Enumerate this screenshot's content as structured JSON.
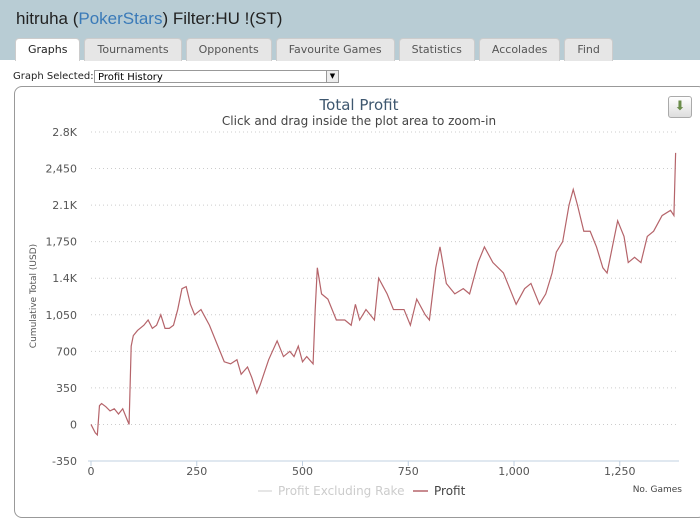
{
  "header": {
    "user": "hitruha",
    "site": "PokerStars",
    "filter": "Filter:HU !(ST)"
  },
  "tabs": [
    {
      "label": "Graphs",
      "active": true
    },
    {
      "label": "Tournaments"
    },
    {
      "label": "Opponents"
    },
    {
      "label": "Favourite Games"
    },
    {
      "label": "Statistics"
    },
    {
      "label": "Accolades"
    },
    {
      "label": "Find"
    }
  ],
  "graph_select": {
    "label": "Graph Selected:",
    "value": "Profit History"
  },
  "chart_data": {
    "type": "line",
    "title": "Total Profit",
    "subtitle": "Click and drag inside the plot area to zoom-in",
    "xlabel": "No. Games",
    "ylabel": "Cumulative Total (USD)",
    "xlim": [
      0,
      1390
    ],
    "ylim": [
      -350,
      2800
    ],
    "xticks": [
      0,
      250,
      500,
      750,
      1000,
      1250
    ],
    "xtick_labels": [
      "0",
      "250",
      "500",
      "750",
      "1,000",
      "1,250"
    ],
    "yticks": [
      -350,
      0,
      350,
      700,
      1050,
      1400,
      1750,
      2100,
      2450,
      2800
    ],
    "ytick_labels": [
      "-350",
      "0",
      "350",
      "700",
      "1,050",
      "1.4K",
      "1,750",
      "2.1K",
      "2,450",
      "2.8K"
    ],
    "grid": true,
    "legend": "bottom",
    "series": [
      {
        "name": "Profit Excluding Rake",
        "color": "#cccccc",
        "visible": false,
        "points": []
      },
      {
        "name": "Profit",
        "color": "#b5646a",
        "points": [
          [
            0,
            0
          ],
          [
            10,
            -80
          ],
          [
            15,
            -100
          ],
          [
            20,
            180
          ],
          [
            25,
            200
          ],
          [
            35,
            170
          ],
          [
            45,
            130
          ],
          [
            55,
            150
          ],
          [
            65,
            100
          ],
          [
            75,
            150
          ],
          [
            85,
            50
          ],
          [
            90,
            0
          ],
          [
            92,
            300
          ],
          [
            95,
            750
          ],
          [
            100,
            850
          ],
          [
            110,
            900
          ],
          [
            125,
            950
          ],
          [
            135,
            1000
          ],
          [
            145,
            920
          ],
          [
            155,
            950
          ],
          [
            165,
            1050
          ],
          [
            175,
            920
          ],
          [
            185,
            920
          ],
          [
            195,
            950
          ],
          [
            205,
            1100
          ],
          [
            215,
            1300
          ],
          [
            225,
            1320
          ],
          [
            235,
            1150
          ],
          [
            245,
            1050
          ],
          [
            260,
            1100
          ],
          [
            280,
            950
          ],
          [
            300,
            750
          ],
          [
            315,
            600
          ],
          [
            330,
            580
          ],
          [
            345,
            620
          ],
          [
            355,
            480
          ],
          [
            370,
            550
          ],
          [
            380,
            450
          ],
          [
            392,
            300
          ],
          [
            400,
            380
          ],
          [
            420,
            620
          ],
          [
            440,
            800
          ],
          [
            455,
            650
          ],
          [
            470,
            700
          ],
          [
            480,
            650
          ],
          [
            490,
            750
          ],
          [
            500,
            600
          ],
          [
            510,
            650
          ],
          [
            525,
            580
          ],
          [
            530,
            1100
          ],
          [
            535,
            1500
          ],
          [
            545,
            1250
          ],
          [
            560,
            1200
          ],
          [
            580,
            1000
          ],
          [
            600,
            1000
          ],
          [
            615,
            950
          ],
          [
            625,
            1150
          ],
          [
            635,
            1000
          ],
          [
            650,
            1100
          ],
          [
            670,
            1000
          ],
          [
            680,
            1400
          ],
          [
            700,
            1250
          ],
          [
            715,
            1100
          ],
          [
            740,
            1100
          ],
          [
            755,
            950
          ],
          [
            770,
            1200
          ],
          [
            790,
            1050
          ],
          [
            800,
            1000
          ],
          [
            815,
            1500
          ],
          [
            825,
            1700
          ],
          [
            840,
            1350
          ],
          [
            860,
            1250
          ],
          [
            880,
            1300
          ],
          [
            895,
            1250
          ],
          [
            915,
            1550
          ],
          [
            930,
            1700
          ],
          [
            950,
            1550
          ],
          [
            975,
            1450
          ],
          [
            990,
            1300
          ],
          [
            1005,
            1150
          ],
          [
            1025,
            1300
          ],
          [
            1040,
            1350
          ],
          [
            1060,
            1150
          ],
          [
            1075,
            1250
          ],
          [
            1090,
            1450
          ],
          [
            1100,
            1650
          ],
          [
            1115,
            1750
          ],
          [
            1130,
            2100
          ],
          [
            1140,
            2250
          ],
          [
            1150,
            2100
          ],
          [
            1165,
            1850
          ],
          [
            1180,
            1850
          ],
          [
            1195,
            1700
          ],
          [
            1210,
            1500
          ],
          [
            1220,
            1450
          ],
          [
            1235,
            1750
          ],
          [
            1245,
            1950
          ],
          [
            1260,
            1800
          ],
          [
            1270,
            1550
          ],
          [
            1285,
            1600
          ],
          [
            1300,
            1550
          ],
          [
            1315,
            1800
          ],
          [
            1330,
            1850
          ],
          [
            1350,
            2000
          ],
          [
            1370,
            2050
          ],
          [
            1378,
            2000
          ],
          [
            1382,
            2600
          ]
        ]
      }
    ]
  },
  "icons": {
    "download": "download-icon"
  }
}
